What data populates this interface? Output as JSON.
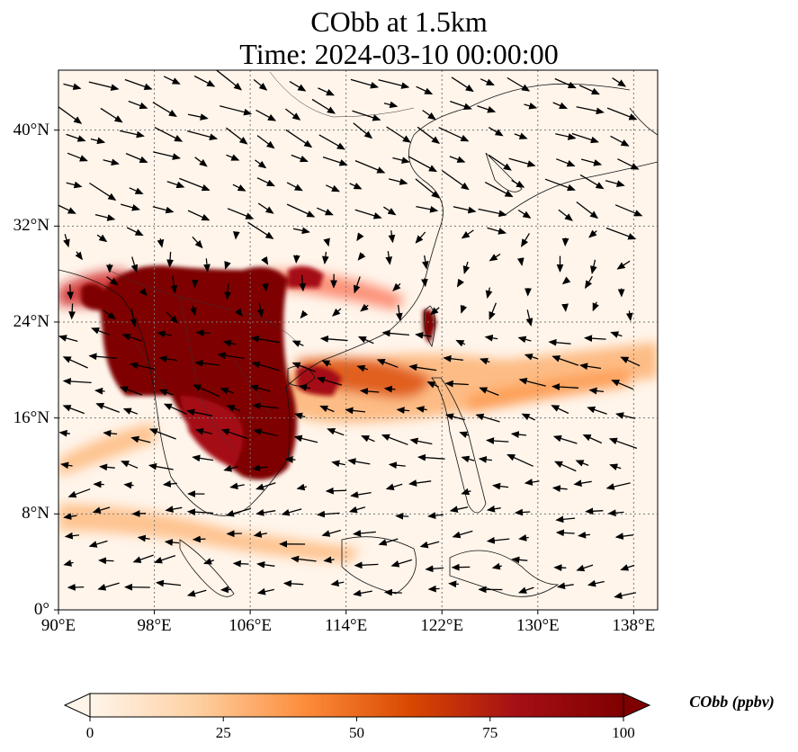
{
  "title": {
    "line1": "CObb at 1.5km",
    "line2": "Time: 2024-03-10 00:00:00"
  },
  "map": {
    "lon_range": [
      90,
      140
    ],
    "lat_range": [
      0,
      45
    ],
    "lat_ticks": [
      {
        "value": 0,
        "label": "0°"
      },
      {
        "value": 8,
        "label": "8°N"
      },
      {
        "value": 16,
        "label": "16°N"
      },
      {
        "value": 24,
        "label": "24°N"
      },
      {
        "value": 32,
        "label": "32°N"
      },
      {
        "value": 40,
        "label": "40°N"
      }
    ],
    "lon_ticks": [
      {
        "value": 90,
        "label": "90°E"
      },
      {
        "value": 98,
        "label": "98°E"
      },
      {
        "value": 106,
        "label": "106°E"
      },
      {
        "value": 114,
        "label": "114°E"
      },
      {
        "value": 122,
        "label": "122°E"
      },
      {
        "value": 130,
        "label": "130°E"
      },
      {
        "value": 138,
        "label": "138°E"
      }
    ],
    "gridlines": true
  },
  "colorbar": {
    "label": "CObb (ppbv)",
    "min": 0,
    "max": 100,
    "ticks": [
      0,
      25,
      50,
      75,
      100
    ],
    "colors": [
      "#fff5eb",
      "#fdd0a2",
      "#fd8d3c",
      "#d94801",
      "#a50f15",
      "#7f0000"
    ],
    "extend": "both"
  }
}
